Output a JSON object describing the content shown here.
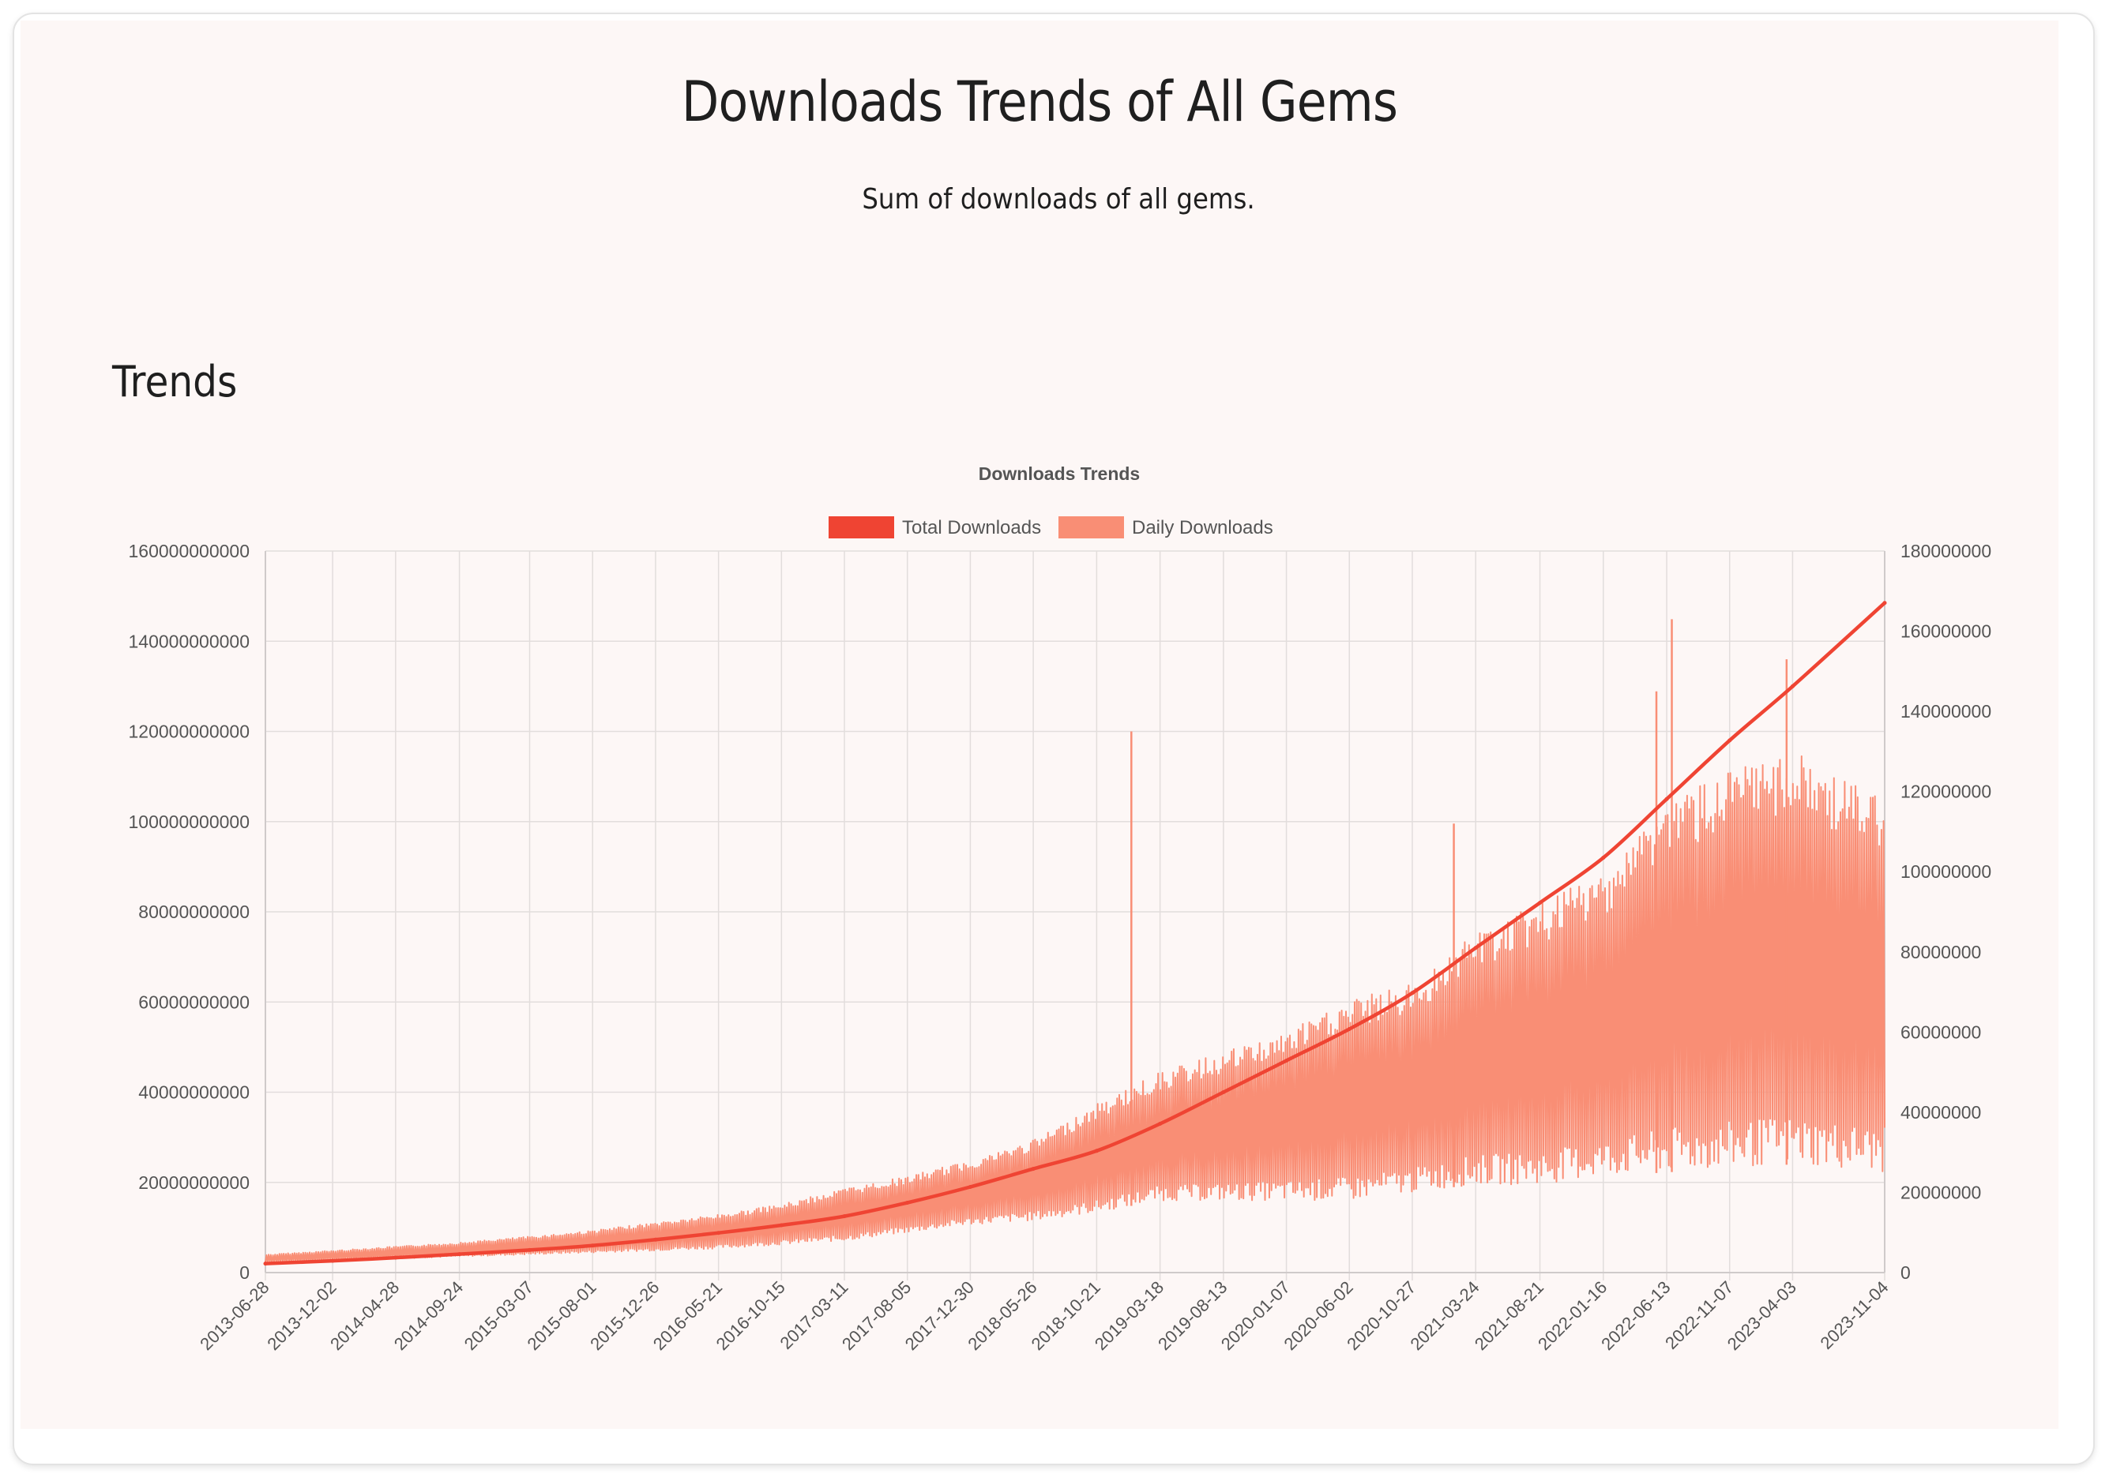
{
  "page": {
    "title": "Downloads Trends of All Gems",
    "subtitle": "Sum of downloads of all gems.",
    "section_title": "Trends"
  },
  "colors": {
    "total": "#ef4433",
    "daily": "#f98e75",
    "grid": "#e2dddc",
    "tick_text": "#555555"
  },
  "chart_data": {
    "type": "line",
    "title": "Downloads Trends",
    "legend_position": "top",
    "grid": true,
    "series": [
      {
        "name": "Total Downloads",
        "axis": "left",
        "x": [
          "2013-06-28",
          "2013-12-02",
          "2014-04-28",
          "2014-09-24",
          "2015-03-07",
          "2015-08-01",
          "2015-12-26",
          "2016-05-21",
          "2016-10-15",
          "2017-03-11",
          "2017-08-05",
          "2017-12-30",
          "2018-05-26",
          "2018-10-21",
          "2019-03-18",
          "2019-08-13",
          "2020-01-07",
          "2020-06-02",
          "2020-10-27",
          "2021-03-24",
          "2021-08-21",
          "2022-01-16",
          "2022-06-13",
          "2022-11-07",
          "2023-04-03",
          "2023-11-04"
        ],
        "values": [
          2000000000,
          2600000000,
          3300000000,
          4100000000,
          5000000000,
          6000000000,
          7300000000,
          8800000000,
          10500000000,
          12500000000,
          15500000000,
          19000000000,
          23000000000,
          27000000000,
          33000000000,
          40000000000,
          47000000000,
          54000000000,
          62000000000,
          72000000000,
          82000000000,
          92000000000,
          105000000000,
          118000000000,
          130000000000,
          148500000000
        ]
      },
      {
        "name": "Daily Downloads",
        "axis": "right",
        "x": [
          "2013-06-28",
          "2013-12-02",
          "2014-04-28",
          "2014-09-24",
          "2015-03-07",
          "2015-08-01",
          "2015-12-26",
          "2016-05-21",
          "2016-10-15",
          "2017-03-11",
          "2017-08-05",
          "2017-12-30",
          "2018-05-26",
          "2018-10-21",
          "2019-03-18",
          "2019-08-13",
          "2020-01-07",
          "2020-06-02",
          "2020-10-27",
          "2021-03-24",
          "2021-08-21",
          "2022-01-16",
          "2022-06-13",
          "2022-11-07",
          "2023-04-03",
          "2023-11-04"
        ],
        "low": [
          2500000,
          3000000,
          3500000,
          4000000,
          4500000,
          5000000,
          5500000,
          6000000,
          7000000,
          8000000,
          10000000,
          12000000,
          13000000,
          15000000,
          18000000,
          18000000,
          18000000,
          18000000,
          20000000,
          22000000,
          22000000,
          24000000,
          25000000,
          26000000,
          27000000,
          25000000
        ],
        "high": [
          4500000,
          5500000,
          6500000,
          7500000,
          9000000,
          10500000,
          12500000,
          14500000,
          17000000,
          21000000,
          24000000,
          28000000,
          33000000,
          42000000,
          50000000,
          55000000,
          60000000,
          68000000,
          72000000,
          85000000,
          92000000,
          100000000,
          118000000,
          125000000,
          130000000,
          118000000
        ],
        "peaks": [
          {
            "date": "2019-01-10",
            "value": 135000000
          },
          {
            "date": "2021-02-01",
            "value": 112000000
          },
          {
            "date": "2022-05-20",
            "value": 145000000
          },
          {
            "date": "2022-06-25",
            "value": 163000000
          },
          {
            "date": "2023-03-20",
            "value": 153000000
          }
        ]
      }
    ],
    "x_tick_labels": [
      "2013-06-28",
      "2013-12-02",
      "2014-04-28",
      "2014-09-24",
      "2015-03-07",
      "2015-08-01",
      "2015-12-26",
      "2016-05-21",
      "2016-10-15",
      "2017-03-11",
      "2017-08-05",
      "2017-12-30",
      "2018-05-26",
      "2018-10-21",
      "2019-03-18",
      "2019-08-13",
      "2020-01-07",
      "2020-06-02",
      "2020-10-27",
      "2021-03-24",
      "2021-08-21",
      "2022-01-16",
      "2022-06-13",
      "2022-11-07",
      "2023-04-03",
      "2023-11-04"
    ],
    "y_left_ticks": [
      "0",
      "20000000000",
      "40000000000",
      "60000000000",
      "80000000000",
      "100000000000",
      "120000000000",
      "140000000000",
      "160000000000"
    ],
    "y_right_ticks": [
      "0",
      "20000000",
      "40000000",
      "60000000",
      "80000000",
      "100000000",
      "120000000",
      "140000000",
      "160000000",
      "180000000"
    ],
    "ylim_left": [
      0,
      160000000000
    ],
    "ylim_right": [
      0,
      180000000
    ]
  }
}
